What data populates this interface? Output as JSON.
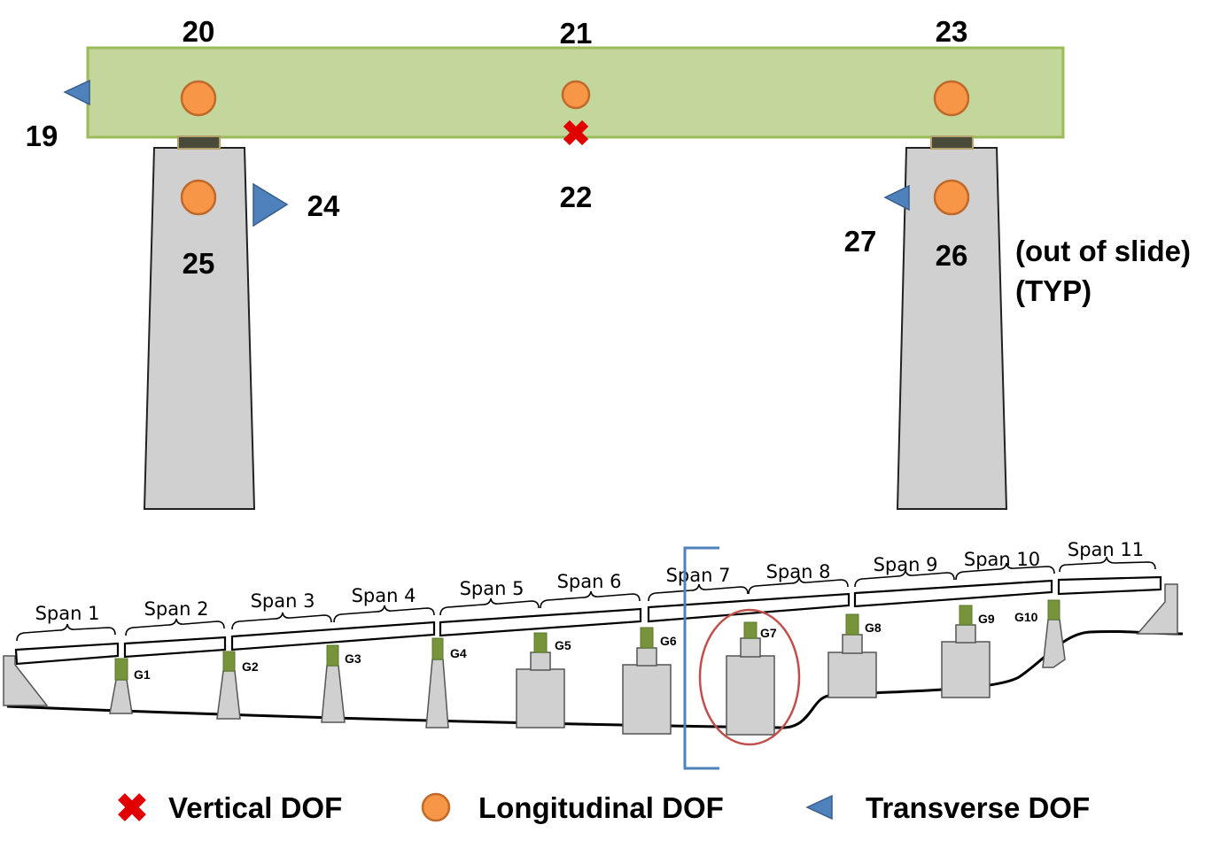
{
  "top_detail": {
    "node_labels": {
      "n19": "19",
      "n20": "20",
      "n21": "21",
      "n22": "22",
      "n23": "23",
      "n24": "24",
      "n25": "25",
      "n26": "26",
      "n27": "27"
    },
    "note_line1": "(out of slide)",
    "note_line2": "(TYP)"
  },
  "elevation": {
    "spans": [
      "Span 1",
      "Span 2",
      "Span 3",
      "Span 4",
      "Span 5",
      "Span 6",
      "Span 7",
      "Span 8",
      "Span 9",
      "Span 10",
      "Span 11"
    ],
    "gaps": [
      "G1",
      "G2",
      "G3",
      "G4",
      "G5",
      "G6",
      "G7",
      "G8",
      "G9",
      "G10"
    ]
  },
  "legend": {
    "vertical": "Vertical DOF",
    "longitudinal": "Longitudinal DOF",
    "transverse": "Transverse DOF"
  },
  "colors": {
    "cap_fill": "#c3d69b",
    "cap_stroke": "#9bbb59",
    "pier_fill": "#d0d0d0",
    "dof_orange": "#f79646",
    "dof_orange_stroke": "#c0692a",
    "dof_blue": "#4f81bd",
    "dof_blue_stroke": "#385d8a",
    "dof_red": "#e00000",
    "bearing_green": "#77933c",
    "highlight_circle": "#c0504d",
    "bracket_blue": "#4f81bd"
  },
  "icons": [
    "cross-icon",
    "circle-icon",
    "triangle-icon"
  ]
}
